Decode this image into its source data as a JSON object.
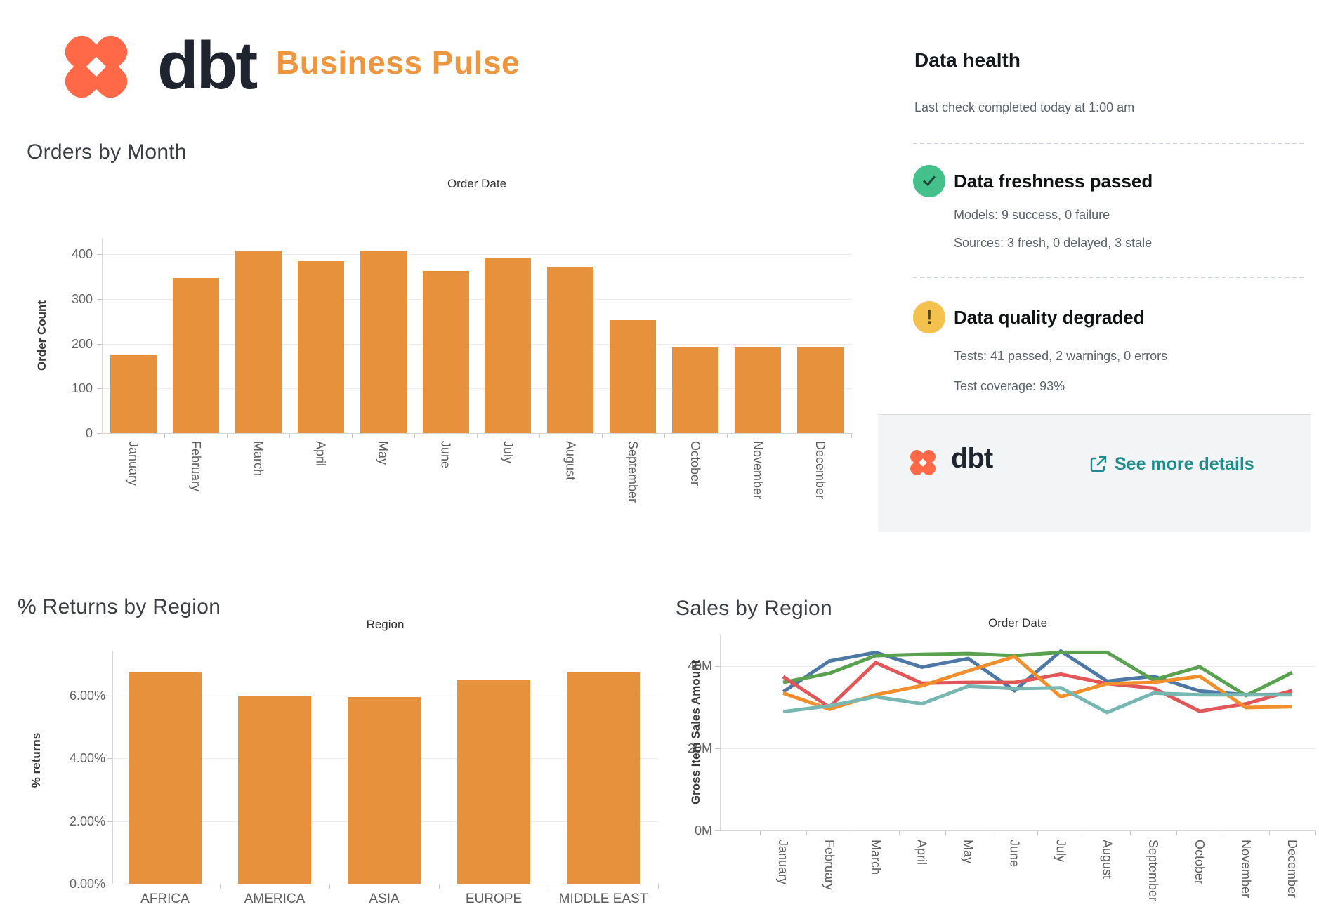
{
  "header": {
    "logo_text": "dbt",
    "title": "Business Pulse"
  },
  "data_health": {
    "title": "Data health",
    "subtitle": "Last check completed today at 1:00 am",
    "statuses": [
      {
        "icon": "check",
        "title": "Data freshness passed",
        "lines": [
          "Models: 9 success, 0 failure",
          "Sources: 3 fresh, 0 delayed, 3 stale"
        ]
      },
      {
        "icon": "warning",
        "icon_glyph": "!",
        "title": "Data quality degraded",
        "lines": [
          "Tests: 41 passed, 2 warnings, 0 errors",
          "Test coverage: 93%"
        ]
      }
    ],
    "footer": {
      "logo_text": "dbt",
      "link_label": "See more details"
    }
  },
  "colors": {
    "dbt_orange": "#ff6948",
    "wordmark_dark": "#20242e",
    "accent_orange": "#ee9540",
    "bar_orange": "#e8913c",
    "link_teal": "#1d8c8c",
    "success_green": "#44c08a",
    "warning_yellow": "#f2c14e"
  },
  "chart_data": [
    {
      "id": "orders",
      "type": "bar",
      "title": "Orders by Month",
      "axis_header": "Order Date",
      "ylabel": "Order Count",
      "categories": [
        "January",
        "February",
        "March",
        "April",
        "May",
        "June",
        "July",
        "August",
        "September",
        "October",
        "November",
        "December"
      ],
      "values": [
        175,
        347,
        409,
        384,
        407,
        362,
        391,
        372,
        253,
        192,
        191,
        192
      ],
      "ytick_values": [
        0,
        100,
        200,
        300,
        400
      ],
      "ytick_labels": [
        "0",
        "100",
        "200",
        "300",
        "400"
      ],
      "ylim": [
        0,
        435
      ],
      "bar_color": "#e8913c",
      "rotated_category_labels": true,
      "grid": true,
      "legend": "none"
    },
    {
      "id": "returns",
      "type": "bar",
      "title": "% Returns by Region",
      "axis_header": "Region",
      "ylabel": "% returns",
      "categories": [
        "AFRICA",
        "AMERICA",
        "ASIA",
        "EUROPE",
        "MIDDLE EAST"
      ],
      "values": [
        6.73,
        6.0,
        5.95,
        6.49,
        6.73
      ],
      "ytick_values": [
        0,
        2,
        4,
        6
      ],
      "ytick_labels": [
        "0.00%",
        "2.00%",
        "4.00%",
        "6.00%"
      ],
      "ylim": [
        0,
        7.4
      ],
      "bar_color": "#e8913c",
      "rotated_category_labels": false,
      "grid": true,
      "legend": "none"
    },
    {
      "id": "sales",
      "type": "line",
      "title": "Sales by Region",
      "axis_header": "Order Date",
      "ylabel": "Gross Item Sales Amount",
      "categories": [
        "January",
        "February",
        "March",
        "April",
        "May",
        "June",
        "July",
        "August",
        "September",
        "October",
        "November",
        "December"
      ],
      "series": [
        {
          "name": "series-blue",
          "color": "#4e79a7",
          "values": [
            33.7,
            41.2,
            43.3,
            39.7,
            41.8,
            34.0,
            43.6,
            36.3,
            37.5,
            33.9,
            33.0,
            33.1
          ]
        },
        {
          "name": "series-green",
          "color": "#59a14f",
          "values": [
            36.0,
            38.2,
            42.5,
            42.8,
            43.0,
            42.5,
            43.3,
            43.3,
            36.6,
            39.8,
            32.8,
            38.4
          ]
        },
        {
          "name": "series-red",
          "color": "#e15759",
          "values": [
            37.4,
            30.0,
            40.8,
            35.8,
            36.0,
            36.0,
            38.0,
            35.7,
            34.6,
            29.0,
            30.8,
            34.0
          ]
        },
        {
          "name": "series-orange",
          "color": "#f28e2b",
          "values": [
            33.4,
            29.5,
            33.0,
            35.2,
            38.8,
            42.3,
            32.5,
            35.7,
            36.0,
            37.5,
            29.9,
            30.1
          ]
        },
        {
          "name": "series-teal",
          "color": "#76b7b2",
          "values": [
            28.9,
            30.3,
            32.5,
            30.8,
            35.1,
            34.5,
            34.7,
            28.7,
            33.4,
            33.0,
            33.0,
            33.0
          ]
        }
      ],
      "ytick_values": [
        0,
        20,
        40
      ],
      "ytick_labels": [
        "0M",
        "20M",
        "40M"
      ],
      "ylim": [
        0,
        47.8
      ],
      "rotated_category_labels": true,
      "grid": true,
      "legend": "none"
    }
  ]
}
